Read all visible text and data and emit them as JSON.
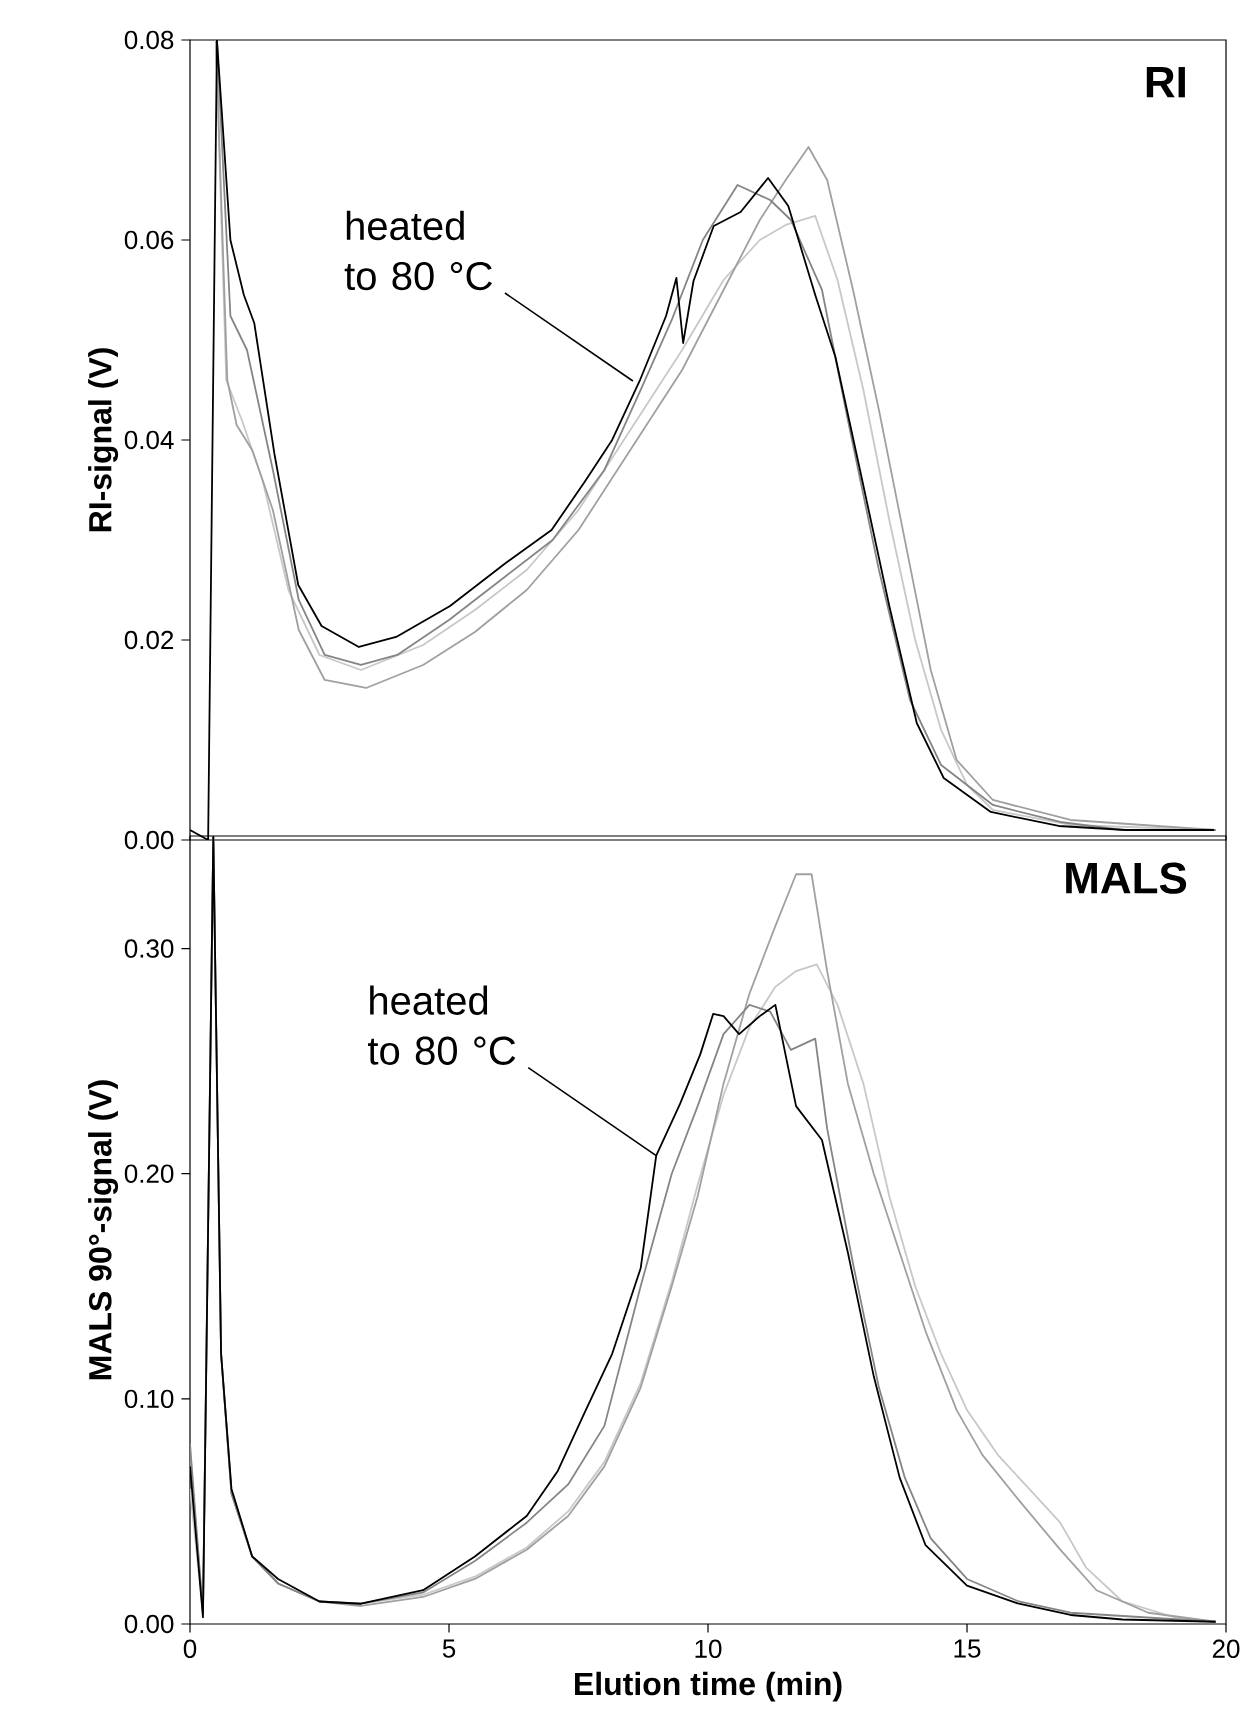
{
  "chart_data": [
    {
      "type": "line",
      "title": "RI",
      "ylabel": "RI-signal (V)",
      "xlim": [
        0,
        20
      ],
      "ylim": [
        0,
        0.08
      ],
      "yticks": [
        {
          "value": 0,
          "label": "0.00"
        },
        0.02,
        0.04,
        0.06,
        {
          "value": 0.08,
          "label": "0.08"
        }
      ],
      "tick_labels": "y",
      "marker": "none",
      "line_style": "solid",
      "annotations": [
        {
          "text": "heated to 80 °C",
          "x": 8.55,
          "y": 0.0459
        }
      ],
      "series": [
        {
          "color": "#c8c8c8",
          "x": [
            0.5,
            0.7,
            1.0,
            1.4,
            1.9,
            2.5,
            3.3,
            4.5,
            5.5,
            6.5,
            7.5,
            8.5,
            9.5,
            10.3,
            11.0,
            11.5,
            12.07,
            12.5,
            13.0,
            13.5,
            14.0,
            14.5,
            15.0,
            15.5,
            17.0,
            19.8
          ],
          "values": [
            0.08,
            0.046,
            0.042,
            0.036,
            0.025,
            0.0185,
            0.017,
            0.0195,
            0.023,
            0.027,
            0.033,
            0.041,
            0.049,
            0.056,
            0.06,
            0.0615,
            0.0624,
            0.056,
            0.045,
            0.032,
            0.02,
            0.011,
            0.0055,
            0.003,
            0.0015,
            0.001
          ]
        },
        {
          "color": "#a0a0a0",
          "x": [
            0.5,
            0.72,
            0.9,
            1.2,
            1.6,
            2.1,
            2.6,
            3.4,
            4.5,
            5.5,
            6.5,
            7.5,
            8.5,
            9.5,
            10.3,
            11.0,
            11.5,
            11.94,
            12.3,
            12.8,
            13.3,
            13.8,
            14.3,
            14.8,
            15.5,
            17.0,
            19.8
          ],
          "values": [
            0.08,
            0.046,
            0.0415,
            0.039,
            0.033,
            0.021,
            0.016,
            0.0152,
            0.0175,
            0.0208,
            0.025,
            0.031,
            0.039,
            0.047,
            0.055,
            0.062,
            0.066,
            0.0693,
            0.066,
            0.055,
            0.043,
            0.03,
            0.017,
            0.008,
            0.004,
            0.002,
            0.001
          ]
        },
        {
          "color": "#858585",
          "x": [
            0.52,
            0.78,
            1.1,
            1.6,
            2.1,
            2.6,
            3.3,
            4.0,
            5.0,
            6.0,
            7.0,
            8.0,
            8.7,
            9.3,
            9.9,
            10.57,
            11.2,
            11.6,
            12.2,
            12.7,
            13.3,
            13.9,
            14.5,
            15.5,
            16.8,
            18.0,
            19.8
          ],
          "values": [
            0.08,
            0.0524,
            0.049,
            0.037,
            0.024,
            0.0185,
            0.0175,
            0.0185,
            0.022,
            0.026,
            0.03,
            0.037,
            0.045,
            0.052,
            0.06,
            0.0655,
            0.064,
            0.062,
            0.055,
            0.042,
            0.027,
            0.014,
            0.0075,
            0.0035,
            0.0018,
            0.001,
            0.001
          ]
        },
        {
          "color": "#000000",
          "x": [
            0,
            0.35,
            0.52,
            0.78,
            1.04,
            1.24,
            1.63,
            2.09,
            2.54,
            3.26,
            3.98,
            5.02,
            6.07,
            6.98,
            7.63,
            8.15,
            8.68,
            9.19,
            9.39,
            9.52,
            9.72,
            10.11,
            10.63,
            11.16,
            11.55,
            12.07,
            12.46,
            12.98,
            13.5,
            14.03,
            14.55,
            15.46,
            16.77,
            18.07,
            19.77
          ],
          "values": [
            0.001,
            0.0,
            0.08,
            0.06,
            0.0545,
            0.0517,
            0.0386,
            0.0255,
            0.0214,
            0.0193,
            0.0203,
            0.0234,
            0.0276,
            0.031,
            0.0359,
            0.04,
            0.0459,
            0.0524,
            0.0562,
            0.0497,
            0.0559,
            0.0614,
            0.0628,
            0.0662,
            0.0634,
            0.0545,
            0.0483,
            0.0359,
            0.0234,
            0.0117,
            0.0062,
            0.0028,
            0.0014,
            0.001,
            0.001
          ]
        }
      ]
    },
    {
      "type": "line",
      "title": "MALS",
      "xlabel": "Elution time (min)",
      "ylabel": "MALS 90°-signal (V)",
      "xlim": [
        0,
        20
      ],
      "ylim": [
        0,
        0.35
      ],
      "xticks": [
        0,
        5,
        10,
        15,
        20
      ],
      "yticks": [
        {
          "value": 0,
          "label": "0.00"
        },
        {
          "value": 0.1,
          "label": "0.10"
        },
        {
          "value": 0.2,
          "label": "0.20"
        },
        {
          "value": 0.3,
          "label": "0.30"
        }
      ],
      "marker": "none",
      "line_style": "solid",
      "annotations": [
        {
          "text": "heated to 80 °C",
          "x": 9.0,
          "y": 0.208
        }
      ],
      "series": [
        {
          "color": "#c8c8c8",
          "x": [
            0,
            0.25,
            0.45,
            0.6,
            0.8,
            1.2,
            1.7,
            2.5,
            3.3,
            4.5,
            5.5,
            6.5,
            7.3,
            8.0,
            8.7,
            9.3,
            9.8,
            10.3,
            10.8,
            11.3,
            11.7,
            12.1,
            12.5,
            13.0,
            13.5,
            14.0,
            14.5,
            15.0,
            15.6,
            16.2,
            16.8,
            17.3,
            18.0,
            19.0,
            19.8
          ],
          "values": [
            0.06,
            0.005,
            0.35,
            0.12,
            0.06,
            0.03,
            0.018,
            0.01,
            0.009,
            0.013,
            0.021,
            0.034,
            0.05,
            0.072,
            0.107,
            0.152,
            0.195,
            0.235,
            0.265,
            0.283,
            0.29,
            0.293,
            0.275,
            0.24,
            0.19,
            0.15,
            0.12,
            0.095,
            0.075,
            0.06,
            0.045,
            0.025,
            0.01,
            0.003,
            0.001
          ]
        },
        {
          "color": "#a0a0a0",
          "x": [
            0,
            0.25,
            0.45,
            0.6,
            0.8,
            1.2,
            1.7,
            2.5,
            3.3,
            4.5,
            5.5,
            6.5,
            7.3,
            8.0,
            8.7,
            9.3,
            9.8,
            10.3,
            10.8,
            11.3,
            11.7,
            12.0,
            12.3,
            12.7,
            13.2,
            13.7,
            14.2,
            14.8,
            15.3,
            16.0,
            16.8,
            17.5,
            18.5,
            19.8
          ],
          "values": [
            0.075,
            0.005,
            0.35,
            0.12,
            0.058,
            0.03,
            0.018,
            0.01,
            0.008,
            0.012,
            0.02,
            0.033,
            0.048,
            0.07,
            0.105,
            0.15,
            0.19,
            0.24,
            0.28,
            0.31,
            0.333,
            0.333,
            0.29,
            0.24,
            0.2,
            0.165,
            0.13,
            0.095,
            0.075,
            0.055,
            0.033,
            0.015,
            0.005,
            0.001
          ]
        },
        {
          "color": "#858585",
          "x": [
            0,
            0.25,
            0.45,
            0.6,
            0.8,
            1.2,
            1.7,
            2.5,
            3.3,
            4.5,
            5.5,
            6.5,
            7.3,
            8.0,
            8.7,
            9.3,
            9.8,
            10.3,
            10.8,
            11.2,
            11.6,
            12.07,
            12.3,
            12.8,
            13.3,
            13.8,
            14.3,
            15.0,
            16.0,
            17.0,
            19.8
          ],
          "values": [
            0.08,
            0.005,
            0.35,
            0.12,
            0.058,
            0.03,
            0.018,
            0.01,
            0.009,
            0.014,
            0.028,
            0.045,
            0.062,
            0.088,
            0.15,
            0.2,
            0.23,
            0.262,
            0.275,
            0.272,
            0.255,
            0.26,
            0.22,
            0.16,
            0.105,
            0.065,
            0.038,
            0.02,
            0.01,
            0.005,
            0.001
          ]
        },
        {
          "color": "#000000",
          "x": [
            0,
            0.25,
            0.45,
            0.6,
            0.8,
            1.2,
            1.7,
            2.5,
            3.3,
            4.5,
            5.5,
            6.5,
            7.1,
            7.6,
            8.15,
            8.7,
            9.0,
            9.46,
            9.85,
            10.1,
            10.3,
            10.6,
            11.0,
            11.3,
            11.7,
            12.2,
            12.7,
            13.2,
            13.7,
            14.2,
            15.0,
            16.0,
            17.0,
            18.0,
            19.8
          ],
          "values": [
            0.07,
            0.003,
            0.35,
            0.12,
            0.06,
            0.03,
            0.02,
            0.01,
            0.009,
            0.015,
            0.03,
            0.048,
            0.068,
            0.093,
            0.12,
            0.158,
            0.208,
            0.231,
            0.253,
            0.271,
            0.27,
            0.262,
            0.27,
            0.275,
            0.23,
            0.215,
            0.165,
            0.11,
            0.065,
            0.035,
            0.017,
            0.009,
            0.004,
            0.002,
            0.001
          ]
        }
      ]
    }
  ]
}
